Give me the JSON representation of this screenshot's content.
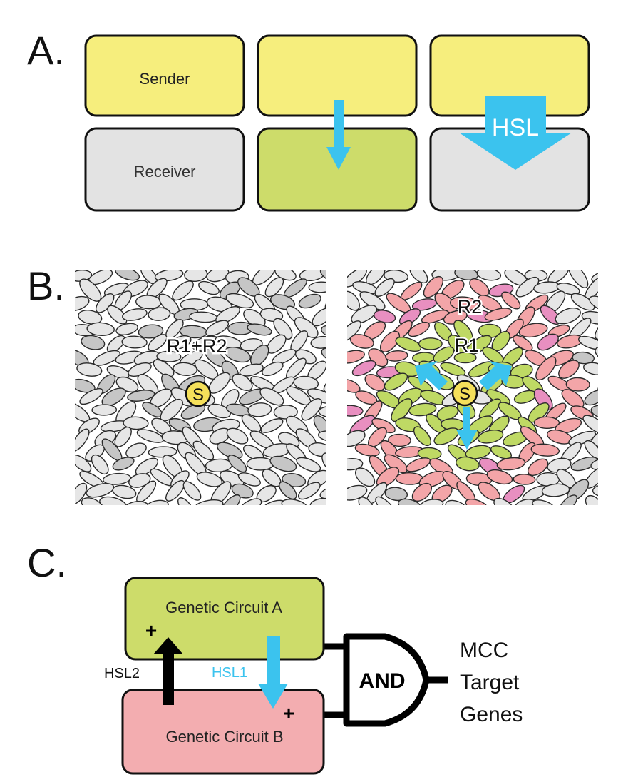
{
  "panel_a": {
    "label": "A.",
    "sender_label": "Sender",
    "receiver_label": "Receiver",
    "signal_label": "HSL"
  },
  "panel_b": {
    "label": "B.",
    "left_region_label": "R1+R2",
    "sender_symbol": "S",
    "right_outer_label": "R2",
    "right_inner_label": "R1",
    "right_sender_symbol": "S"
  },
  "panel_c": {
    "label": "C.",
    "circuit_a": "Genetic Circuit A",
    "circuit_b": "Genetic Circuit B",
    "signal_up": "HSL2",
    "signal_down": "HSL1",
    "plus_a": "+",
    "plus_b": "+",
    "gate": "AND",
    "output_line1": "MCC",
    "output_line2": "Target",
    "output_line3": "Genes"
  },
  "colors": {
    "sender_yellow": "#f6ee7d",
    "receiver_gray": "#e3e3e3",
    "activated_green": "#cddc6a",
    "signal_blue": "#3bc3ee",
    "cell_gray": "#e6e6e6",
    "cell_dark_gray": "#c6c6c6",
    "r1_green": "#bfd964",
    "r2_pink": "#f3a5a8",
    "pink_magenta": "#e88fc0",
    "circuit_a_green": "#cddc6a",
    "circuit_b_pink": "#f3adb0",
    "sender_circle": "#f5e05a"
  }
}
